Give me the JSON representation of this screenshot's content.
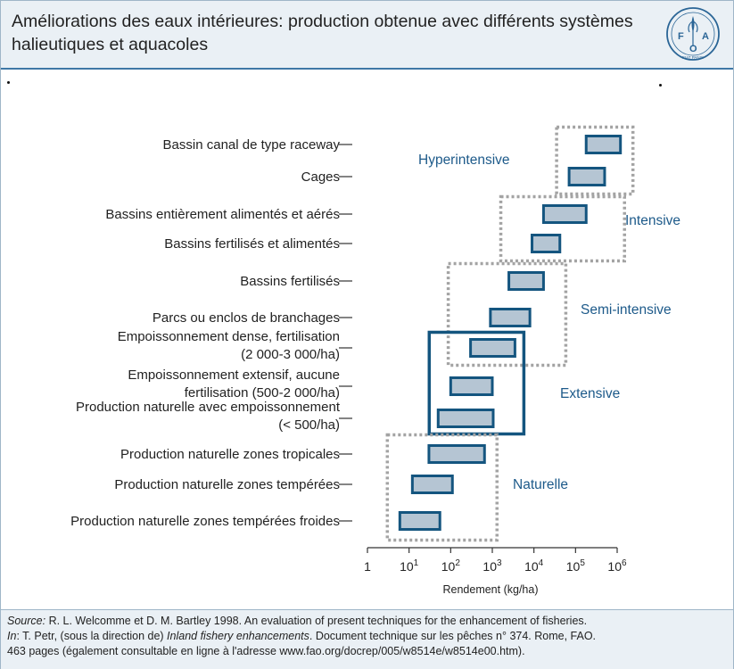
{
  "title": "Améliorations des eaux intérieures: production obtenue avec différents systèmes halieutiques et aquacoles",
  "logo": {
    "icon": "fao-logo-icon",
    "text_left": "F",
    "text_right": "A",
    "text_bottom": "O",
    "motto": "FIAT PANIS"
  },
  "colors": {
    "accent": "#14557f",
    "bar_fill": "#b5c5d3",
    "dotted": "#a3a3a3",
    "group_label": "#1d5a8a"
  },
  "chart_data": {
    "type": "range-bar",
    "xlabel": "Rendement (kg/ha)",
    "xscale": "log10",
    "xlim": [
      1,
      1000000
    ],
    "xticks": [
      {
        "value": 1,
        "base": "1",
        "exp": ""
      },
      {
        "value": 10,
        "base": "10",
        "exp": "1"
      },
      {
        "value": 100,
        "base": "10",
        "exp": "2"
      },
      {
        "value": 1000,
        "base": "10",
        "exp": "3"
      },
      {
        "value": 10000,
        "base": "10",
        "exp": "4"
      },
      {
        "value": 100000,
        "base": "10",
        "exp": "5"
      },
      {
        "value": 1000000,
        "base": "10",
        "exp": "6"
      }
    ],
    "categories": [
      {
        "label": [
          "Bassin canal de type raceway"
        ],
        "range": [
          180000,
          1200000
        ]
      },
      {
        "label": [
          "Cages"
        ],
        "range": [
          70000,
          500000
        ]
      },
      {
        "label": [
          "Bassins entièrement alimentés et aérés"
        ],
        "range": [
          17000,
          180000
        ]
      },
      {
        "label": [
          "Bassins fertilisés et alimentés"
        ],
        "range": [
          9000,
          42000
        ]
      },
      {
        "label": [
          "Bassins fertilisés"
        ],
        "range": [
          2500,
          17000
        ]
      },
      {
        "label": [
          "Parcs ou enclos de branchages"
        ],
        "range": [
          900,
          8000
        ]
      },
      {
        "label": [
          "Empoissonnement dense, fertilisation",
          "(2 000-3 000/ha)"
        ],
        "range": [
          300,
          3500
        ]
      },
      {
        "label": [
          "Empoissonnement extensif, aucune",
          "fertilisation (500-2 000/ha)"
        ],
        "range": [
          100,
          1000
        ]
      },
      {
        "label": [
          "Production naturelle avec empoissonnement",
          "(< 500/ha)"
        ],
        "range": [
          50,
          1050
        ]
      },
      {
        "label": [
          "Production naturelle zones tropicales"
        ],
        "range": [
          30,
          650
        ]
      },
      {
        "label": [
          "Production naturelle zones tempérées"
        ],
        "range": [
          12,
          110
        ]
      },
      {
        "label": [
          "Production naturelle zones tempérées froides"
        ],
        "range": [
          6,
          55
        ]
      }
    ],
    "groups": [
      {
        "name": "Hyperintensive",
        "items": [
          0,
          1
        ],
        "style": "dotted"
      },
      {
        "name": "Intensive",
        "items": [
          2,
          3
        ],
        "style": "dotted"
      },
      {
        "name": "Semi-intensive",
        "items": [
          4,
          5,
          6
        ],
        "style": "dotted"
      },
      {
        "name": "Extensive",
        "items": [
          6,
          7,
          8
        ],
        "style": "solid"
      },
      {
        "name": "Naturelle",
        "items": [
          9,
          10,
          11
        ],
        "style": "dotted"
      }
    ]
  },
  "source": {
    "line1_label": "Source:",
    "line1_text": " R. L. Welcomme et D. M. Bartley 1998. An evaluation of present techniques for the enhancement of fisheries.",
    "line2_label": "In",
    "line2_a": ": T. Petr, (sous la direction de) ",
    "line2_italic": "Inland fishery enhancements",
    "line2_b": ". Document technique sur les pêches n° 374. Rome, FAO.",
    "line3": "463 pages (également consultable en ligne à l'adresse www.fao.org/docrep/005/w8514e/w8514e00.htm)."
  }
}
